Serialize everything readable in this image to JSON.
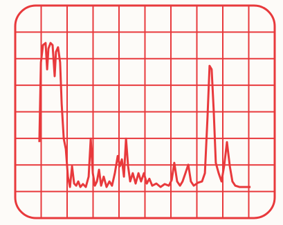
{
  "chart_data": {
    "type": "line",
    "x": [
      0.93,
      0.99,
      1.07,
      1.17,
      1.23,
      1.28,
      1.36,
      1.44,
      1.52,
      1.57,
      1.65,
      1.73,
      1.79,
      1.87,
      1.95,
      2.03,
      2.11,
      2.19,
      2.27,
      2.35,
      2.43,
      2.51,
      2.61,
      2.72,
      2.83,
      2.91,
      2.99,
      3.07,
      3.15,
      3.23,
      3.31,
      3.41,
      3.52,
      3.63,
      3.73,
      3.84,
      3.95,
      4.03,
      4.11,
      4.19,
      4.27,
      4.35,
      4.43,
      4.53,
      4.64,
      4.75,
      4.85,
      4.96,
      5.07,
      5.17,
      5.28,
      5.44,
      5.6,
      5.76,
      5.92,
      6.03,
      6.13,
      6.24,
      6.35,
      6.45,
      6.56,
      6.67,
      6.77,
      6.88,
      7.04,
      7.2,
      7.31,
      7.41,
      7.49,
      7.57,
      7.65,
      7.73,
      7.84,
      7.95,
      8.05,
      8.16,
      8.27,
      8.37,
      8.48,
      8.64,
      8.85,
      9.07
    ],
    "series": [
      {
        "color": "#e8393c",
        "values": [
          2.86,
          5.86,
          6.51,
          6.59,
          5.6,
          6.38,
          6.59,
          6.51,
          5.34,
          6.25,
          6.43,
          5.86,
          4.3,
          2.99,
          2.6,
          1.56,
          1.17,
          1.95,
          1.3,
          1.22,
          1.38,
          1.17,
          1.28,
          1.17,
          1.56,
          2.99,
          1.69,
          1.22,
          1.38,
          1.82,
          1.22,
          1.56,
          1.17,
          1.38,
          1.22,
          1.69,
          2.34,
          1.95,
          2.21,
          1.56,
          2.99,
          1.95,
          1.38,
          1.69,
          1.3,
          1.69,
          1.38,
          1.69,
          1.3,
          1.48,
          1.22,
          1.3,
          1.17,
          1.28,
          1.22,
          1.43,
          2.08,
          1.38,
          1.22,
          1.38,
          1.69,
          2.01,
          1.38,
          1.22,
          1.33,
          1.38,
          1.69,
          3.78,
          5.73,
          5.6,
          4.04,
          2.08,
          1.69,
          1.38,
          1.95,
          2.86,
          1.95,
          1.38,
          1.22,
          1.17,
          1.17,
          1.17
        ]
      }
    ],
    "xlim": [
      0,
      10
    ],
    "ylim": [
      0,
      8
    ],
    "xticks": [
      0,
      1,
      2,
      3,
      4,
      5,
      6,
      7,
      8,
      9,
      10
    ],
    "yticks": [
      0,
      1,
      2,
      3,
      4,
      5,
      6,
      7,
      8
    ],
    "grid": true,
    "grid_color": "#e8393c"
  }
}
